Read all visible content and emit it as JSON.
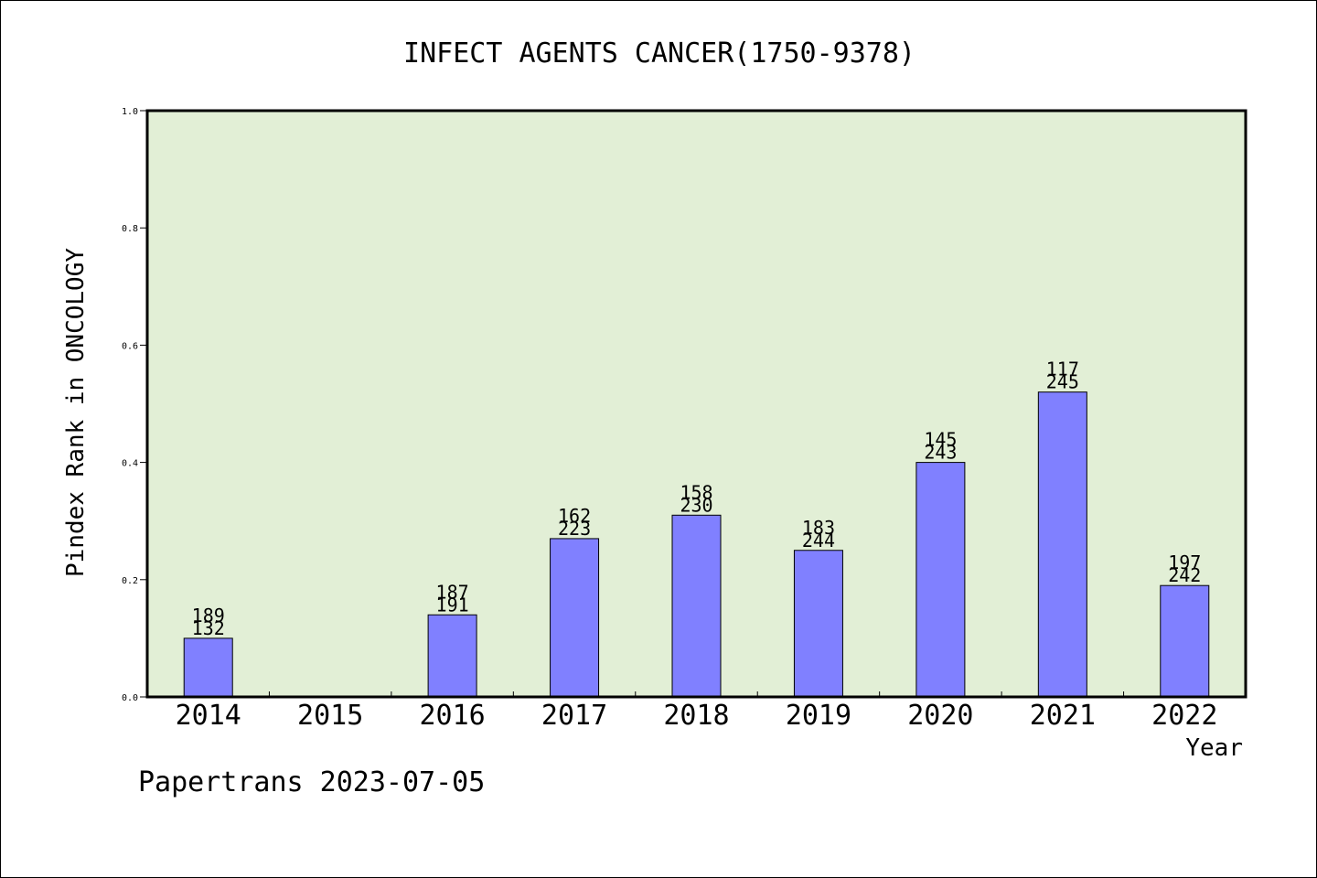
{
  "colors": {
    "plot_background": "#e2efd6",
    "bar_fill": "#8080ff",
    "bar_stroke": "#000000",
    "axis": "#000000"
  },
  "footer": "Papertrans 2023-07-05",
  "chart_data": {
    "type": "bar",
    "title": "INFECT AGENTS CANCER(1750-9378)",
    "xlabel": "Year",
    "ylabel": "Pindex Rank in ONCOLOGY",
    "ylim": [
      0,
      1.0
    ],
    "yticks": [
      "0.0",
      "0.2",
      "0.4",
      "0.6",
      "0.8",
      "1.0"
    ],
    "grid": false,
    "categories": [
      "2014",
      "2015",
      "2016",
      "2017",
      "2018",
      "2019",
      "2020",
      "2021",
      "2022"
    ],
    "values": [
      0.1,
      null,
      0.14,
      0.27,
      0.31,
      0.25,
      0.4,
      0.52,
      0.19
    ],
    "labels_top": [
      "189",
      "",
      "187",
      "162",
      "158",
      "183",
      "145",
      "117",
      "197"
    ],
    "labels_bottom": [
      "132",
      "",
      "191",
      "223",
      "230",
      "244",
      "243",
      "245",
      "242"
    ]
  }
}
